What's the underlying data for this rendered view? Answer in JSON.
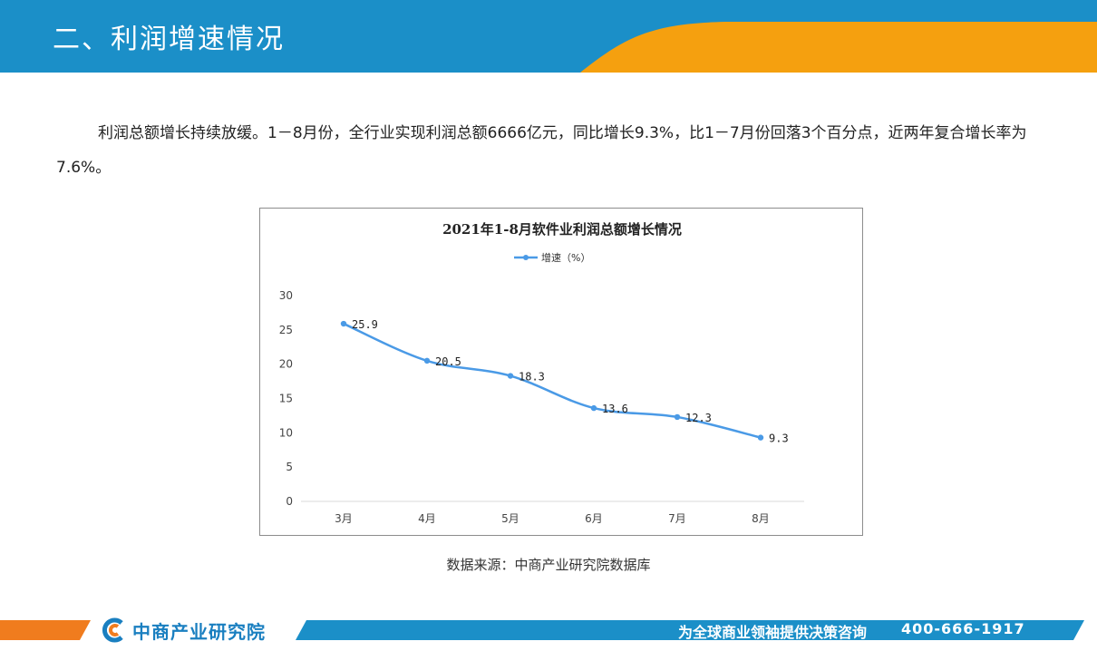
{
  "header": {
    "section_title": "二、利润增速情况"
  },
  "body": {
    "paragraph": "利润总额增长持续放缓。1－8月份，全行业实现利润总额6666亿元，同比增长9.3%，比1－7月份回落3个百分点，近两年复合增长率为7.6%。"
  },
  "chart_data": {
    "type": "line",
    "title": "2021年1-8月软件业利润总额增长情况",
    "categories": [
      "3月",
      "4月",
      "5月",
      "6月",
      "7月",
      "8月"
    ],
    "series": [
      {
        "name": "增速（%）",
        "values": [
          25.9,
          20.5,
          18.3,
          13.6,
          12.3,
          9.3
        ],
        "color": "#4a9ae6"
      }
    ],
    "yticks": [
      0,
      5,
      10,
      15,
      20,
      25,
      30
    ],
    "ylim": [
      0,
      30
    ],
    "grid": false,
    "legend": "top"
  },
  "source": "数据来源：中商产业研究院数据库",
  "footer": {
    "brand": "中商产业研究院",
    "slogan": "为全球商业领袖提供决策咨询",
    "phone": "400-666-1917"
  },
  "colors": {
    "header_blue": "#1b8fc8",
    "accent_orange": "#f5a00f",
    "footer_orange": "#f07c1e",
    "footer_blue": "#1b8fc8"
  }
}
